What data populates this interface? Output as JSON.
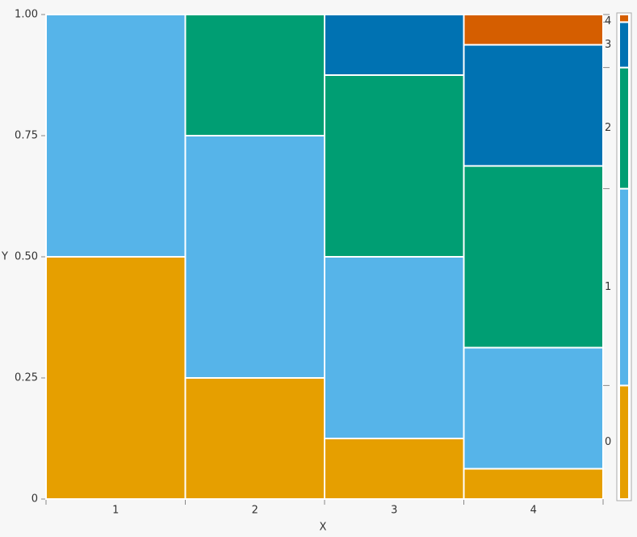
{
  "chart_data": {
    "type": "mosaic",
    "x_label": "X",
    "y_label": "Y",
    "categories": [
      "1",
      "2",
      "3",
      "4"
    ],
    "series": [
      {
        "name": "0",
        "color": "#e69f00",
        "values": [
          0.5,
          0.25,
          0.125,
          0.0625
        ]
      },
      {
        "name": "1",
        "color": "#56b4e9",
        "values": [
          0.5,
          0.5,
          0.375,
          0.25
        ]
      },
      {
        "name": "2",
        "color": "#009e73",
        "values": [
          0,
          0.25,
          0.375,
          0.375
        ]
      },
      {
        "name": "3",
        "color": "#0072b2",
        "values": [
          0,
          0,
          0.125,
          0.25
        ]
      },
      {
        "name": "4",
        "color": "#d55e00",
        "values": [
          0,
          0,
          0,
          0.0625
        ]
      }
    ],
    "ylim": [
      0,
      1
    ],
    "yticks": [
      0,
      0.25,
      {
        "value": 0.5,
        "label": "0.50"
      },
      0.75,
      {
        "value": 1,
        "label": "1.00"
      }
    ]
  }
}
